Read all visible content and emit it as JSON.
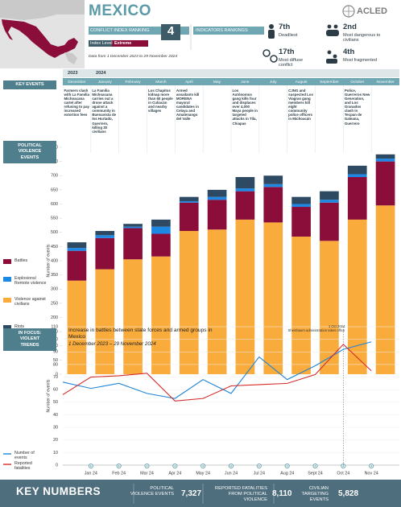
{
  "header": {
    "title": "MEXICO",
    "logo": "ACLED",
    "conflict_index_label": "CONFLICT INDEX RANKING",
    "conflict_index_rank": 4,
    "index_level_label": "Index Level",
    "index_level": "Extreme",
    "indicators_label": "INDICATORS RANKINGS",
    "date_range": "Data from 1 December 2023 to 29 November 2024"
  },
  "rankings": [
    {
      "rank": "7th",
      "label": "Deadliest"
    },
    {
      "rank": "2nd",
      "label": "Most dangerous to civilians"
    },
    {
      "rank": "17th",
      "label": "Most diffuse conflict"
    },
    {
      "rank": "4th",
      "label": "Most fragmented"
    }
  ],
  "sidebar": {
    "key_events": "KEY EVENTS",
    "political_violence": "POLITICAL VIOLENCE EVENTS",
    "in_focus": "IN FOCUS: VIOLENT TRENDS"
  },
  "timeline": {
    "years": [
      "2023",
      "2024"
    ]
  },
  "key_events": [
    {
      "month": "December",
      "text": "Farmers clash with La Familia Michoacana cartel after refusing to pay increased extortion fees"
    },
    {
      "month": "January",
      "text": "La Familia Michoacana carries out a drone attack against a community in Buenavista de los Hurtado, Guerrero, killing 30 civilians"
    },
    {
      "month": "March",
      "text": "Los Chapitos kidnap more than 60 people in Culiacán and nearby villages"
    },
    {
      "month": "April",
      "text": "Armed assailants kill MORENA mayoral candidates in Celaya and Amatenango del Valle"
    },
    {
      "month": "June",
      "text": "Los Autónomos gang kills four and displaces over 4,000 Maya people in targeted attacks in Tila, Chiapas"
    },
    {
      "month": "August",
      "text": "CJNG and suspected Los Viagras gang members kill eight community police officers in Michoacán"
    },
    {
      "month": "October",
      "text": "Police, Guerreros New Generation, and Los Granados clash in Tecpan de Galeana, Guerrero"
    }
  ],
  "chart_data": [
    {
      "type": "bar",
      "stacked": true,
      "ylabel": "Number of events",
      "categories": [
        "December",
        "January",
        "February",
        "March",
        "April",
        "May",
        "June",
        "July",
        "August",
        "September",
        "October",
        "November"
      ],
      "series": [
        {
          "name": "Battles",
          "color": "#8a0d3a",
          "values": [
            105,
            110,
            110,
            80,
            100,
            105,
            100,
            125,
            105,
            135,
            150,
            155
          ]
        },
        {
          "name": "Explosions/ Remote violence",
          "color": "#1e88e5",
          "values": [
            10,
            10,
            5,
            25,
            5,
            10,
            10,
            10,
            10,
            10,
            10,
            10
          ]
        },
        {
          "name": "Violence against civilians",
          "color": "#f9ab3b",
          "values": [
            330,
            370,
            405,
            415,
            505,
            510,
            545,
            535,
            485,
            470,
            545,
            595
          ]
        },
        {
          "name": "Riots",
          "color": "#2d4a62",
          "values": [
            20,
            15,
            10,
            25,
            15,
            25,
            40,
            30,
            25,
            30,
            30,
            15
          ]
        }
      ],
      "stack_order": [
        "Violence against civilians",
        "Battles",
        "Explosions/ Remote violence",
        "Riots"
      ],
      "ylim": [
        0,
        800
      ],
      "yticks": [
        0,
        50,
        100,
        150,
        200,
        250,
        300,
        350,
        400,
        450,
        500,
        550,
        600,
        650,
        700,
        750,
        800
      ]
    },
    {
      "type": "line",
      "title": "Increase in battles between state forces and armed groups in Mexico",
      "subtitle": "1 December 2023 – 29 November 2024",
      "ylabel": "Number of events",
      "annotation": {
        "label": "1 Oct 2024",
        "text": "Sheinbaum administration takes office"
      },
      "categories": [
        null,
        "Jan 24",
        "Feb 24",
        "Mar 24",
        "Apr 24",
        "May 24",
        "Jun 24",
        "Jul 24",
        "Aug 24",
        "Sept 24",
        "Oct 24",
        "Nov 24"
      ],
      "series": [
        {
          "name": "Number of events",
          "color": "#1f86d6",
          "values": [
            66,
            61,
            65,
            57,
            53,
            68,
            57,
            86,
            68,
            79,
            92,
            98
          ]
        },
        {
          "name": "Reported fatalities",
          "color": "#d42a2a",
          "values": [
            56,
            70,
            71,
            73,
            51,
            53,
            63,
            64,
            65,
            72,
            96,
            75
          ]
        }
      ],
      "ylim": [
        0,
        110
      ],
      "yticks": [
        0,
        10,
        20,
        30,
        40,
        50,
        60,
        70,
        80,
        90,
        100,
        110
      ],
      "grid": true
    }
  ],
  "footer": {
    "title": "KEY NUMBERS",
    "numbers": [
      {
        "label": "POLITICAL VIOLENCE EVENTS",
        "value": "7,327"
      },
      {
        "label": "REPORTED FATALITIES FROM POLITICAL VIOLENCE",
        "value": "8,110"
      },
      {
        "label": "CIVILIAN TARGETING EVENTS",
        "value": "5,828"
      }
    ]
  }
}
